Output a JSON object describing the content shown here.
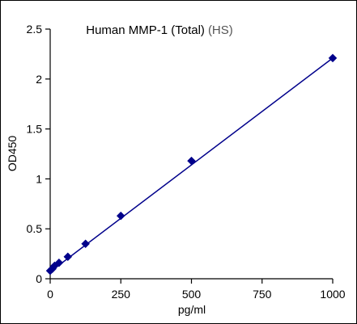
{
  "chart_data": {
    "type": "scatter",
    "title": "Human MMP-1 (Total)",
    "title_suffix": "(HS)",
    "xlabel": "pg/ml",
    "ylabel": "OD450",
    "xlim": [
      0,
      1000
    ],
    "ylim": [
      0,
      2.5
    ],
    "x_ticks": [
      "0",
      "250",
      "500",
      "750",
      "1000"
    ],
    "y_ticks": [
      "0",
      "0.5",
      "1",
      "1.5",
      "2",
      "2.5"
    ],
    "grid": false,
    "legend": "none",
    "series": [
      {
        "x": [
          0,
          7.8,
          15.6,
          31.25,
          62.5,
          125,
          250,
          500,
          1000
        ],
        "y": [
          0.08,
          0.1,
          0.13,
          0.16,
          0.22,
          0.35,
          0.63,
          1.18,
          2.21
        ]
      }
    ],
    "fit_line": {
      "x": [
        0,
        1000
      ],
      "y": [
        0.07,
        2.21
      ]
    },
    "colors": {
      "series": "#00008B",
      "axis": "#000000"
    }
  }
}
